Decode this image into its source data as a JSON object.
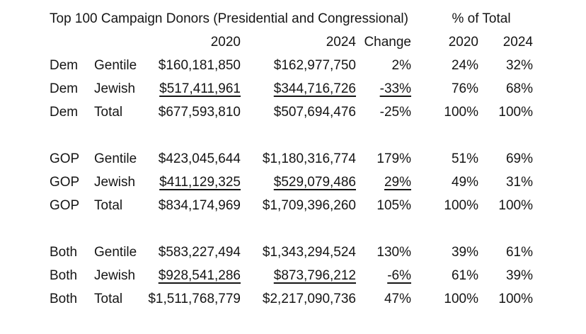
{
  "page": {
    "background_color": "#ffffff",
    "text_color": "#151515"
  },
  "chart_data": {
    "type": "table",
    "title": "Top 100 Campaign Donors (Presidential and Congressional)",
    "group_header": "% of Total",
    "columns": [
      "",
      "",
      "2020",
      "2024",
      "Change",
      "2020",
      "2024"
    ],
    "column_roles": [
      "party",
      "group",
      "amount_2020",
      "amount_2024",
      "change_pct",
      "share_of_total_2020",
      "share_of_total_2024"
    ],
    "rows": [
      {
        "party": "Dem",
        "group": "Gentile",
        "amount_2020": "$160,181,850",
        "amount_2024": "$162,977,750",
        "change": "2%",
        "pct_2020": "24%",
        "pct_2024": "32%",
        "underlined": false
      },
      {
        "party": "Dem",
        "group": "Jewish",
        "amount_2020": "$517,411,961",
        "amount_2024": "$344,716,726",
        "change": "-33%",
        "pct_2020": "76%",
        "pct_2024": "68%",
        "underlined": true
      },
      {
        "party": "Dem",
        "group": "Total",
        "amount_2020": "$677,593,810",
        "amount_2024": "$507,694,476",
        "change": "-25%",
        "pct_2020": "100%",
        "pct_2024": "100%",
        "underlined": false
      },
      {
        "party": "GOP",
        "group": "Gentile",
        "amount_2020": "$423,045,644",
        "amount_2024": "$1,180,316,774",
        "change": "179%",
        "pct_2020": "51%",
        "pct_2024": "69%",
        "underlined": false
      },
      {
        "party": "GOP",
        "group": "Jewish",
        "amount_2020": "$411,129,325",
        "amount_2024": "$529,079,486",
        "change": "29%",
        "pct_2020": "49%",
        "pct_2024": "31%",
        "underlined": true
      },
      {
        "party": "GOP",
        "group": "Total",
        "amount_2020": "$834,174,969",
        "amount_2024": "$1,709,396,260",
        "change": "105%",
        "pct_2020": "100%",
        "pct_2024": "100%",
        "underlined": false
      },
      {
        "party": "Both",
        "group": "Gentile",
        "amount_2020": "$583,227,494",
        "amount_2024": "$1,343,294,524",
        "change": "130%",
        "pct_2020": "39%",
        "pct_2024": "61%",
        "underlined": false
      },
      {
        "party": "Both",
        "group": "Jewish",
        "amount_2020": "$928,541,286",
        "amount_2024": "$873,796,212",
        "change": "-6%",
        "pct_2020": "61%",
        "pct_2024": "39%",
        "underlined": true
      },
      {
        "party": "Both",
        "group": "Total",
        "amount_2020": "$1,511,768,779",
        "amount_2024": "$2,217,090,736",
        "change": "47%",
        "pct_2020": "100%",
        "pct_2024": "100%",
        "underlined": false
      }
    ]
  }
}
